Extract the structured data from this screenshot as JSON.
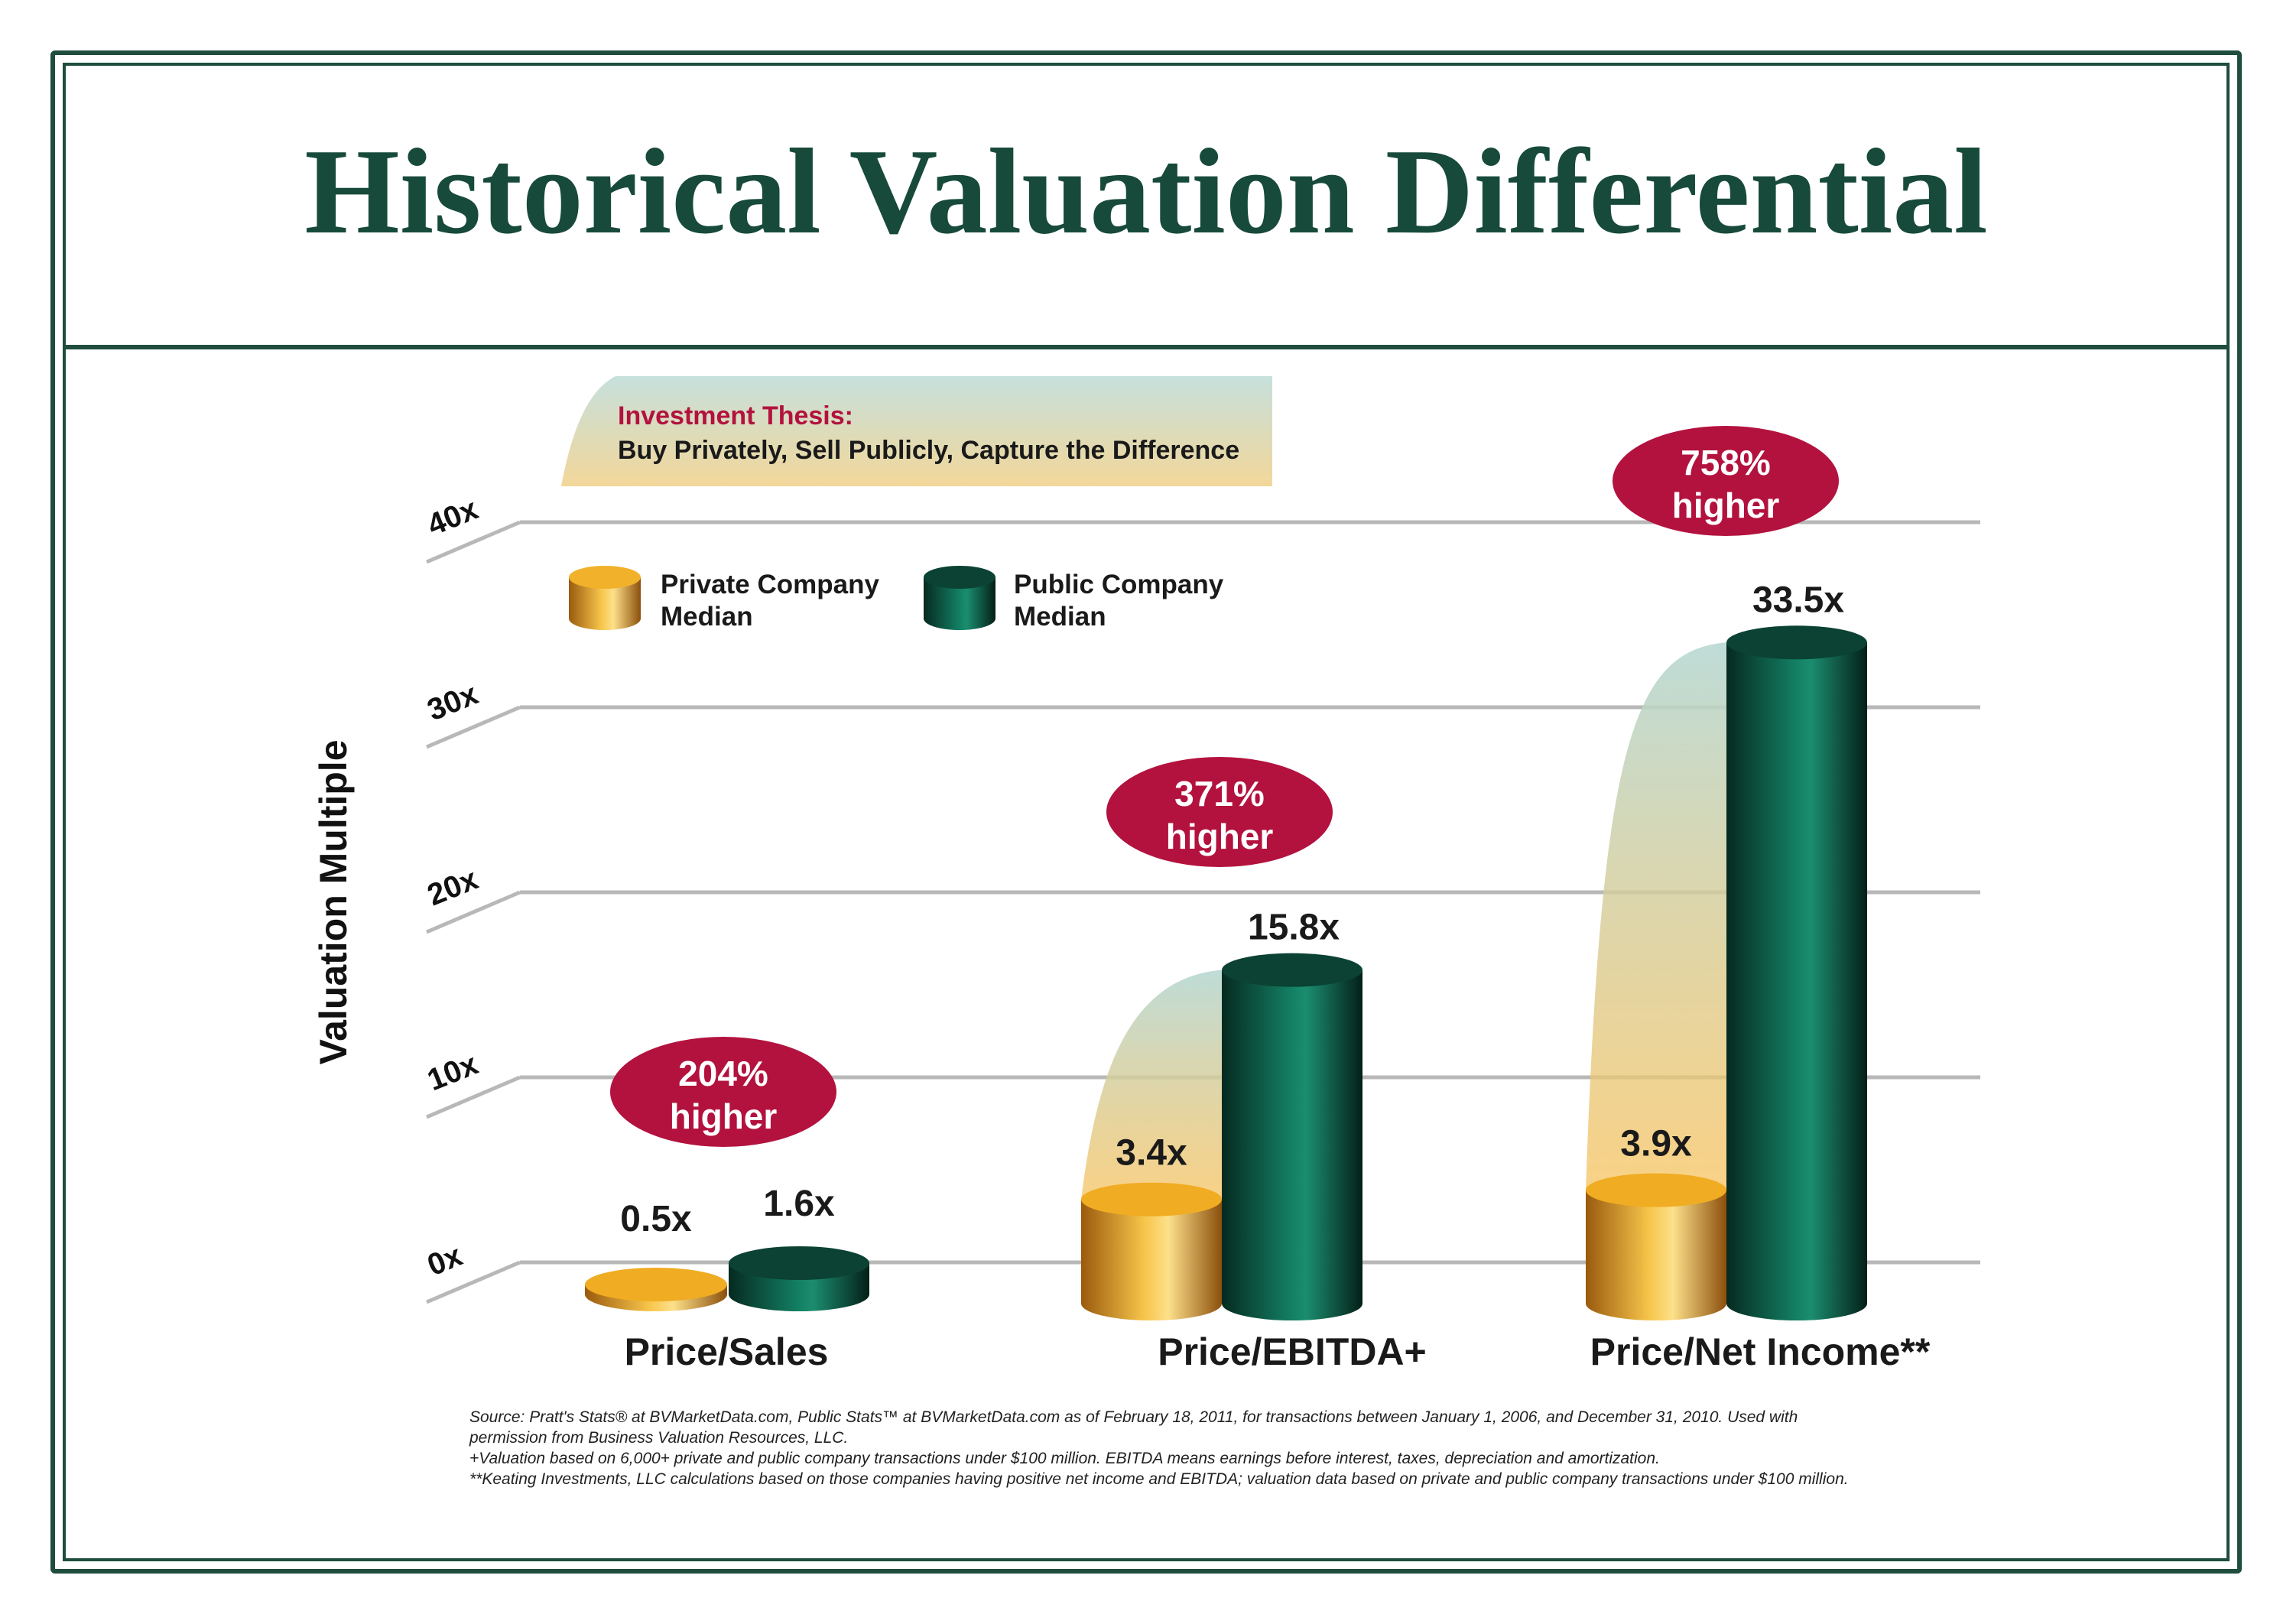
{
  "title": "Historical Valuation Differential",
  "banner": {
    "heading": "Investment Thesis:",
    "text": "Buy Privately, Sell Publicly, Capture the Difference"
  },
  "colors": {
    "frame": "#1f4d3e",
    "title": "#174a3b",
    "private": "#e9a21b",
    "public": "#0f5a45",
    "badge": "#b3123e"
  },
  "chart_data": {
    "type": "bar",
    "title": "Historical Valuation Differential",
    "ylabel": "Valuation Multiple",
    "xlabel": "",
    "ylim": [
      0,
      40
    ],
    "yticks": [
      0,
      10,
      20,
      30,
      40
    ],
    "ytick_labels": [
      "0x",
      "10x",
      "20x",
      "30x",
      "40x"
    ],
    "grid": true,
    "legend_position": "top-left",
    "categories": [
      "Price/Sales",
      "Price/EBITDA+",
      "Price/Net Income**"
    ],
    "series": [
      {
        "name": "Private Company Median",
        "values": [
          0.5,
          3.4,
          3.9
        ],
        "labels": [
          "0.5x",
          "3.4x",
          "3.9x"
        ],
        "color": "#e9a21b"
      },
      {
        "name": "Public Company Median",
        "values": [
          1.6,
          15.8,
          33.5
        ],
        "labels": [
          "1.6x",
          "15.8x",
          "33.5x"
        ],
        "color": "#0f5a45"
      }
    ],
    "annotations": [
      {
        "category": "Price/Sales",
        "line1": "204%",
        "line2": "higher"
      },
      {
        "category": "Price/EBITDA+",
        "line1": "371%",
        "line2": "higher"
      },
      {
        "category": "Price/Net Income**",
        "line1": "758%",
        "line2": "higher"
      }
    ]
  },
  "footnotes": [
    "Source: Pratt's Stats® at BVMarketData.com, Public Stats™ at BVMarketData.com as of February 18, 2011, for transactions between January 1, 2006, and December 31, 2010. Used with",
    "permission from Business Valuation Resources, LLC.",
    "+Valuation based on 6,000+ private and public company transactions under $100 million. EBITDA means earnings before interest, taxes, depreciation and amortization.",
    "**Keating Investments, LLC calculations based on those companies having positive net income and EBITDA; valuation data based on private and public company transactions under $100 million."
  ]
}
